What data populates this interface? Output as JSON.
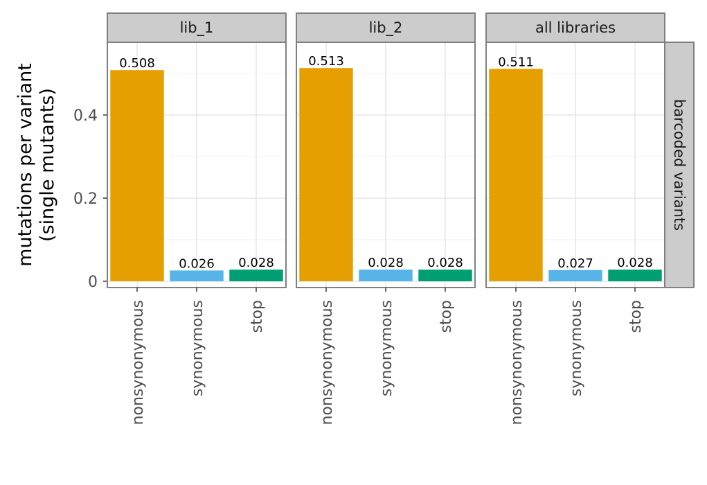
{
  "chart_data": {
    "type": "bar",
    "ylabel": [
      "mutations per variant",
      "(single mutants)"
    ],
    "ylim": [
      0,
      0.58
    ],
    "yticks": [
      {
        "value": 0,
        "label": "0"
      },
      {
        "value": 0.2,
        "label": "0.2"
      },
      {
        "value": 0.4,
        "label": "0.4"
      }
    ],
    "categories": [
      "nonsynonymous",
      "synonymous",
      "stop"
    ],
    "colors": {
      "nonsynonymous": "#E69F00",
      "synonymous": "#56B4E9",
      "stop": "#009E73"
    },
    "grid": true,
    "row_strip": "barcoded variants",
    "panels": [
      {
        "facet": "lib_1",
        "values": [
          0.508,
          0.026,
          0.028
        ],
        "labels": [
          "0.508",
          "0.026",
          "0.028"
        ]
      },
      {
        "facet": "lib_2",
        "values": [
          0.513,
          0.028,
          0.028
        ],
        "labels": [
          "0.513",
          "0.028",
          "0.028"
        ]
      },
      {
        "facet": "all libraries",
        "values": [
          0.511,
          0.027,
          0.028
        ],
        "labels": [
          "0.511",
          "0.027",
          "0.028"
        ]
      }
    ]
  }
}
